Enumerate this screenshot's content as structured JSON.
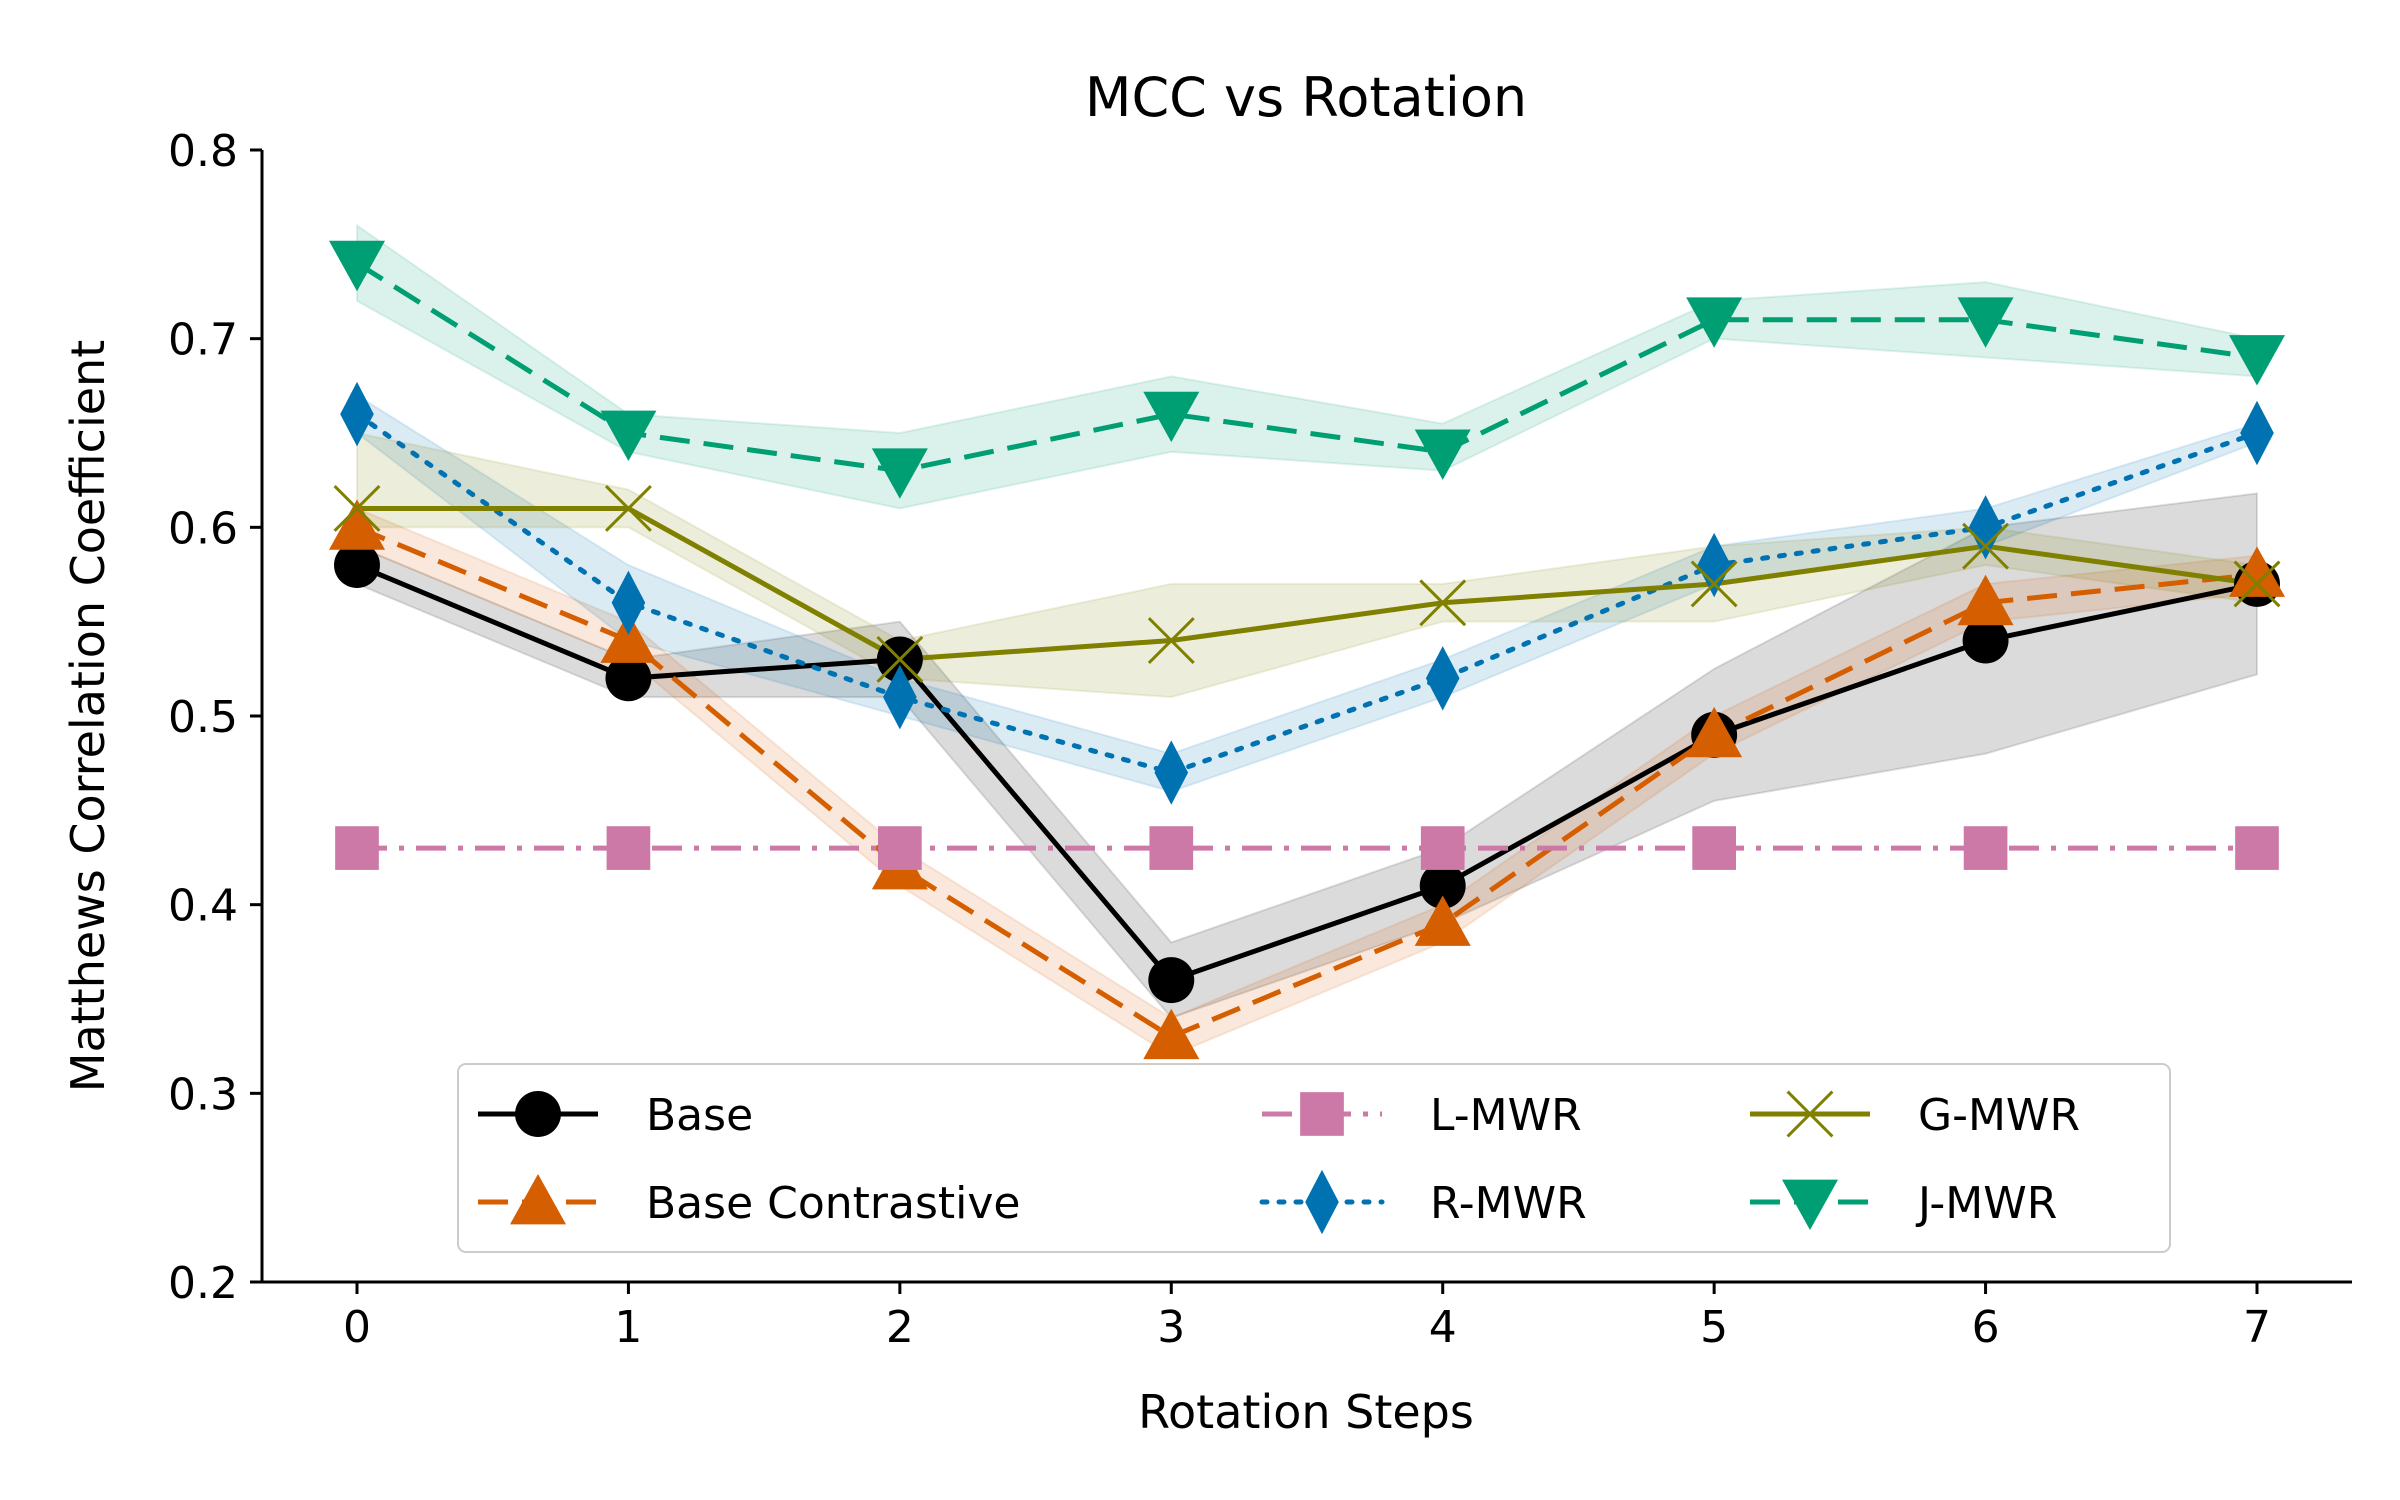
{
  "chart_data": {
    "type": "line",
    "title": "MCC vs Rotation",
    "xlabel": "Rotation Steps",
    "ylabel": "Matthews Correlation Coefficient",
    "x": [
      0,
      1,
      2,
      3,
      4,
      5,
      6,
      7
    ],
    "xlim": [
      -0.35,
      7.35
    ],
    "ylim": [
      0.2,
      0.8
    ],
    "xticks": [
      "0",
      "1",
      "2",
      "3",
      "4",
      "5",
      "6",
      "7"
    ],
    "yticks": [
      "0.2",
      "0.3",
      "0.4",
      "0.5",
      "0.6",
      "0.7",
      "0.8"
    ],
    "legend_position": "lower-center",
    "series": [
      {
        "name": "Base",
        "color": "#000000",
        "dash": "solid",
        "marker": "circle",
        "values": [
          0.58,
          0.52,
          0.53,
          0.36,
          0.41,
          0.49,
          0.54,
          0.57
        ],
        "lower": [
          0.57,
          0.51,
          0.51,
          0.34,
          0.39,
          0.455,
          0.48,
          0.522
        ],
        "upper": [
          0.59,
          0.53,
          0.55,
          0.38,
          0.43,
          0.525,
          0.6,
          0.618
        ]
      },
      {
        "name": "Base Contrastive",
        "color": "#D55E00",
        "dash": "dashed",
        "marker": "triangle-up",
        "values": [
          0.6,
          0.54,
          0.42,
          0.33,
          0.39,
          0.49,
          0.56,
          0.575
        ],
        "lower": [
          0.59,
          0.53,
          0.41,
          0.32,
          0.38,
          0.48,
          0.55,
          0.565
        ],
        "upper": [
          0.61,
          0.55,
          0.43,
          0.34,
          0.4,
          0.5,
          0.57,
          0.585
        ]
      },
      {
        "name": "L-MWR",
        "color": "#CC79A7",
        "dash": "dashdot",
        "marker": "square",
        "values": [
          0.43,
          0.43,
          0.43,
          0.43,
          0.43,
          0.43,
          0.43,
          0.43
        ]
      },
      {
        "name": "R-MWR",
        "color": "#0072B2",
        "dash": "dotted",
        "marker": "diamond",
        "values": [
          0.66,
          0.56,
          0.51,
          0.47,
          0.52,
          0.58,
          0.6,
          0.65
        ],
        "lower": [
          0.65,
          0.54,
          0.5,
          0.46,
          0.51,
          0.57,
          0.59,
          0.645
        ],
        "upper": [
          0.67,
          0.58,
          0.52,
          0.48,
          0.53,
          0.59,
          0.61,
          0.655
        ]
      },
      {
        "name": "G-MWR",
        "color": "#808000",
        "dash": "solid",
        "marker": "x",
        "values": [
          0.61,
          0.61,
          0.53,
          0.54,
          0.56,
          0.57,
          0.59,
          0.57
        ],
        "lower": [
          0.6,
          0.6,
          0.52,
          0.51,
          0.55,
          0.55,
          0.58,
          0.56
        ],
        "upper": [
          0.65,
          0.62,
          0.54,
          0.57,
          0.57,
          0.59,
          0.6,
          0.58
        ]
      },
      {
        "name": "J-MWR",
        "color": "#009E73",
        "dash": "dashed",
        "marker": "triangle-down",
        "values": [
          0.74,
          0.65,
          0.63,
          0.66,
          0.64,
          0.71,
          0.71,
          0.69
        ],
        "lower": [
          0.72,
          0.64,
          0.61,
          0.64,
          0.63,
          0.7,
          0.69,
          0.68
        ],
        "upper": [
          0.76,
          0.66,
          0.65,
          0.68,
          0.655,
          0.72,
          0.73,
          0.7
        ]
      }
    ]
  }
}
